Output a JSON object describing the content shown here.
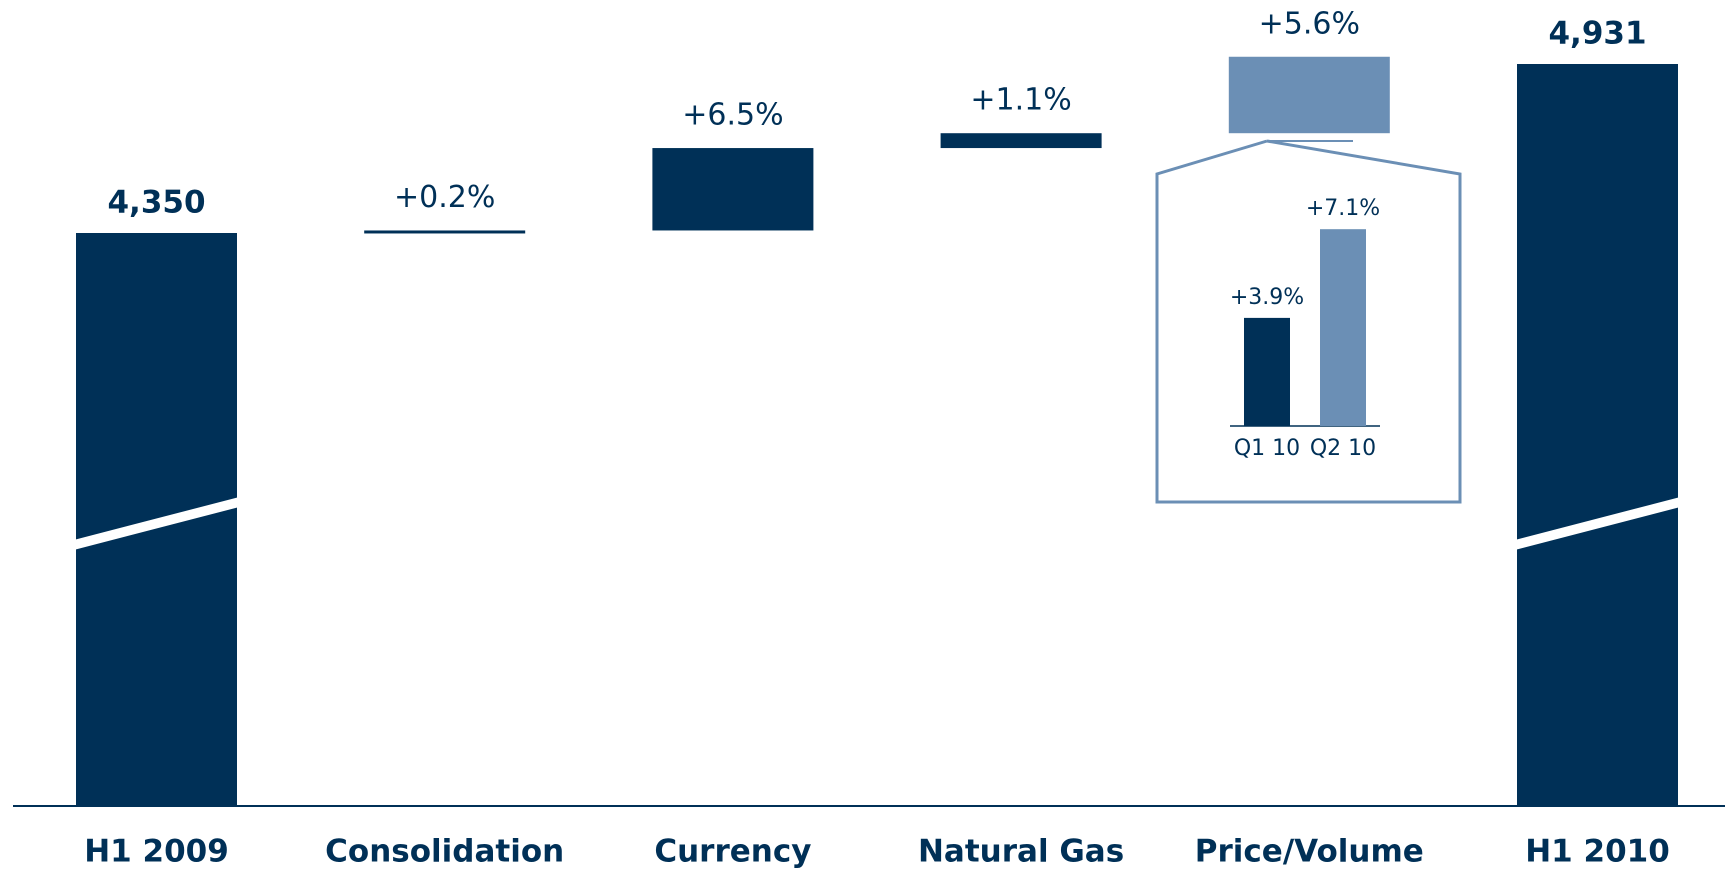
{
  "chart_data": {
    "type": "waterfall",
    "categories": [
      "H1 2009",
      "Consolidation",
      "Currency",
      "Natural Gas",
      "Price/Volume",
      "H1 2010"
    ],
    "values": [
      4350,
      0.2,
      6.5,
      1.1,
      5.6,
      4931
    ],
    "value_labels": [
      "4,350",
      "+0.2%",
      "+6.5%",
      "+1.1%",
      "+5.6%",
      "4,931"
    ],
    "color": "#003057",
    "highlight_color": "#6b8fb5",
    "inset": {
      "type": "bar",
      "categories": [
        "Q1 10",
        "Q2 10"
      ],
      "values": [
        3.9,
        7.1
      ],
      "value_labels": [
        "+3.9%",
        "+7.1%"
      ],
      "colors": [
        "#003057",
        "#6b8fb5"
      ]
    }
  }
}
